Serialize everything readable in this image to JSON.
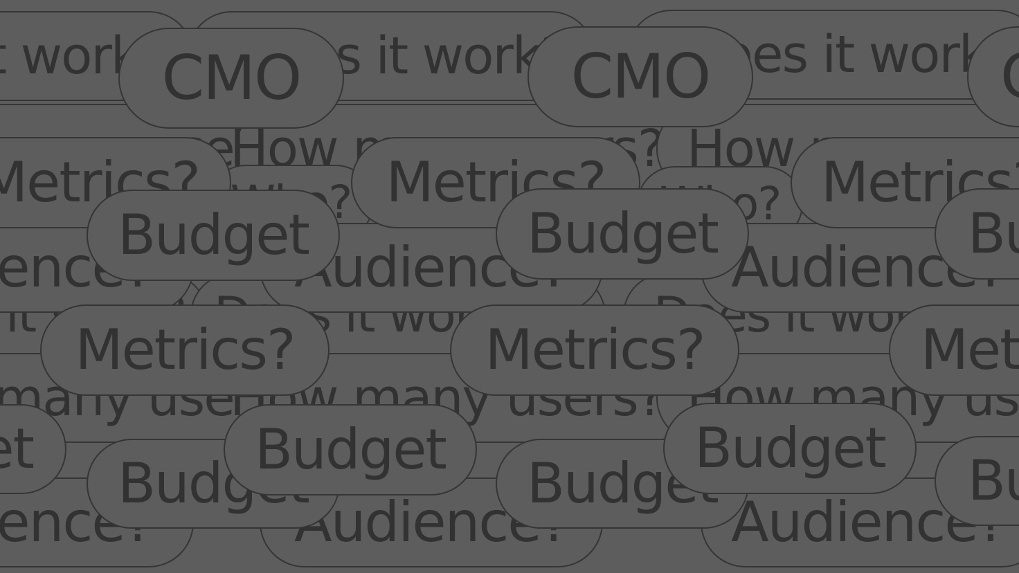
{
  "tags": {
    "cmo": "CMO",
    "metrics": "Metrics?",
    "budget": "Budget",
    "audience": "Audience?",
    "does_it_work": "Does it work?",
    "how_many_users": "How many users?",
    "who": "Who?"
  },
  "colors": {
    "background": "#5d5d5d",
    "pill_border": "#353535",
    "text": "#323232"
  }
}
